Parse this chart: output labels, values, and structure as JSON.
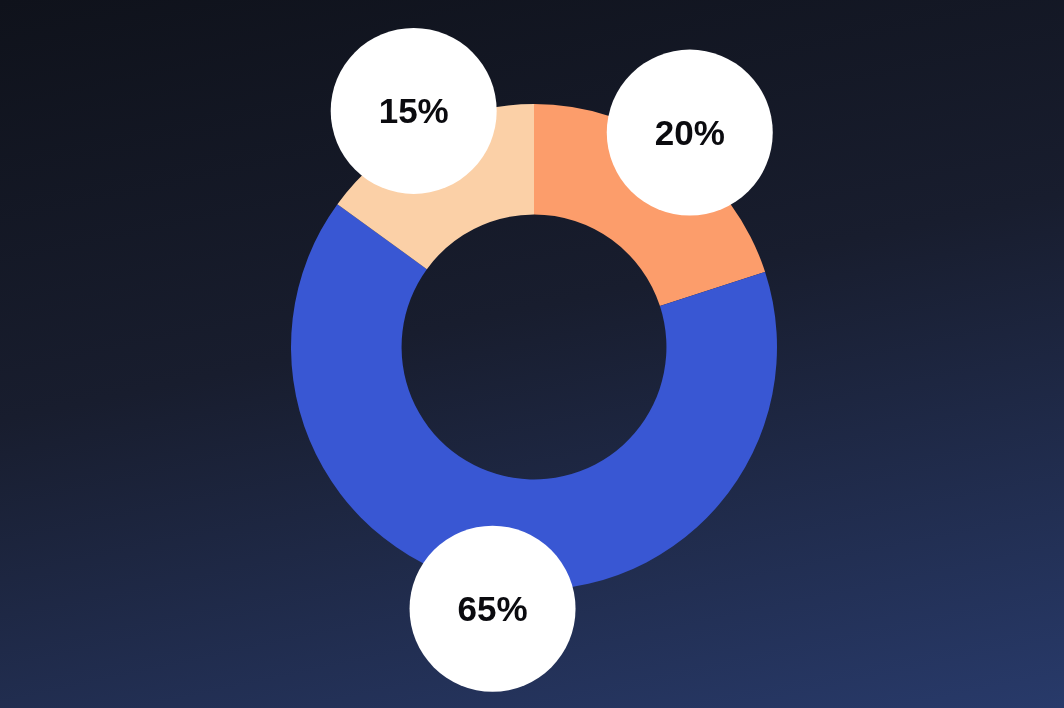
{
  "chart_data": {
    "type": "donut",
    "categories": [
      null,
      null,
      null
    ],
    "values": [
      20,
      65,
      15
    ],
    "colors": [
      "#fc9d6b",
      "#3957d3",
      "#fbd0a7"
    ],
    "value_labels": [
      "20%",
      "65%",
      "15%"
    ]
  }
}
